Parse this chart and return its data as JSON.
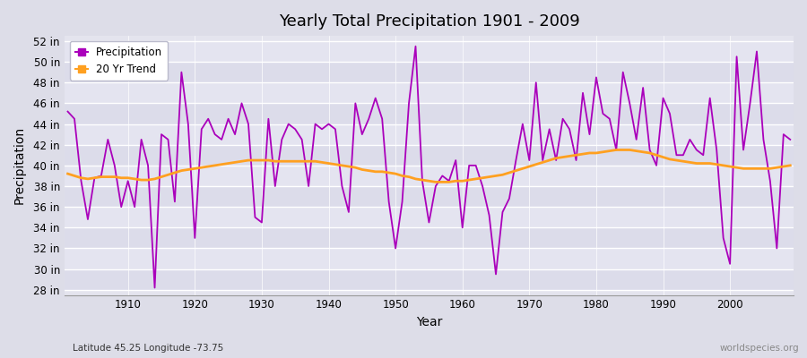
{
  "title": "Yearly Total Precipitation 1901 - 2009",
  "xlabel": "Year",
  "ylabel": "Precipitation",
  "subtitle_left": "Latitude 45.25 Longitude -73.75",
  "subtitle_right": "worldspecies.org",
  "precip_color": "#AA00BB",
  "trend_color": "#FFA020",
  "fig_bg_color": "#DDDDE8",
  "plot_bg_color": "#E4E4EE",
  "grid_color": "#FFFFFF",
  "ylim": [
    27.5,
    52.5
  ],
  "yticks": [
    28,
    30,
    32,
    34,
    36,
    38,
    40,
    42,
    44,
    46,
    48,
    50,
    52
  ],
  "xticks": [
    1910,
    1920,
    1930,
    1940,
    1950,
    1960,
    1970,
    1980,
    1990,
    2000
  ],
  "xlim": [
    1900.5,
    2009.5
  ],
  "years": [
    1901,
    1902,
    1903,
    1904,
    1905,
    1906,
    1907,
    1908,
    1909,
    1910,
    1911,
    1912,
    1913,
    1914,
    1915,
    1916,
    1917,
    1918,
    1919,
    1920,
    1921,
    1922,
    1923,
    1924,
    1925,
    1926,
    1927,
    1928,
    1929,
    1930,
    1931,
    1932,
    1933,
    1934,
    1935,
    1936,
    1937,
    1938,
    1939,
    1940,
    1941,
    1942,
    1943,
    1944,
    1945,
    1946,
    1947,
    1948,
    1949,
    1950,
    1951,
    1952,
    1953,
    1954,
    1955,
    1956,
    1957,
    1958,
    1959,
    1960,
    1961,
    1962,
    1963,
    1964,
    1965,
    1966,
    1967,
    1968,
    1969,
    1970,
    1971,
    1972,
    1973,
    1974,
    1975,
    1976,
    1977,
    1978,
    1979,
    1980,
    1981,
    1982,
    1983,
    1984,
    1985,
    1986,
    1987,
    1988,
    1989,
    1990,
    1991,
    1992,
    1993,
    1994,
    1995,
    1996,
    1997,
    1998,
    1999,
    2000,
    2001,
    2002,
    2003,
    2004,
    2005,
    2006,
    2007,
    2008,
    2009
  ],
  "precip": [
    45.2,
    44.5,
    38.5,
    34.8,
    38.8,
    39.0,
    42.5,
    40.0,
    36.0,
    38.5,
    36.0,
    42.5,
    40.0,
    28.2,
    43.0,
    42.5,
    36.5,
    49.0,
    44.0,
    33.0,
    43.5,
    44.5,
    43.0,
    42.5,
    44.5,
    43.0,
    46.0,
    44.0,
    35.0,
    34.5,
    44.5,
    38.0,
    42.5,
    44.0,
    43.5,
    42.5,
    38.0,
    44.0,
    43.5,
    44.0,
    43.5,
    38.0,
    35.5,
    46.0,
    43.0,
    44.5,
    46.5,
    44.5,
    36.5,
    32.0,
    36.5,
    46.0,
    51.5,
    38.5,
    34.5,
    38.0,
    39.0,
    38.5,
    40.5,
    34.0,
    40.0,
    40.0,
    38.0,
    35.2,
    29.5,
    35.5,
    36.8,
    40.5,
    44.0,
    40.5,
    48.0,
    40.5,
    43.5,
    40.5,
    44.5,
    43.5,
    40.5,
    47.0,
    43.0,
    48.5,
    45.0,
    44.5,
    41.5,
    49.0,
    46.0,
    42.5,
    47.5,
    41.5,
    40.0,
    46.5,
    45.0,
    41.0,
    41.0,
    42.5,
    41.5,
    41.0,
    46.5,
    41.5,
    33.0,
    30.5,
    50.5,
    41.5,
    46.0,
    51.0,
    42.5,
    38.5,
    32.0,
    43.0,
    42.5
  ],
  "trend": [
    39.2,
    39.0,
    38.8,
    38.7,
    38.8,
    38.9,
    38.9,
    38.9,
    38.8,
    38.8,
    38.7,
    38.6,
    38.6,
    38.7,
    38.9,
    39.1,
    39.3,
    39.5,
    39.6,
    39.7,
    39.8,
    39.9,
    40.0,
    40.1,
    40.2,
    40.3,
    40.4,
    40.5,
    40.5,
    40.5,
    40.5,
    40.4,
    40.4,
    40.4,
    40.4,
    40.4,
    40.4,
    40.4,
    40.3,
    40.2,
    40.1,
    40.0,
    39.9,
    39.8,
    39.6,
    39.5,
    39.4,
    39.4,
    39.3,
    39.2,
    39.0,
    38.9,
    38.7,
    38.6,
    38.5,
    38.4,
    38.4,
    38.4,
    38.5,
    38.5,
    38.6,
    38.7,
    38.8,
    38.9,
    39.0,
    39.1,
    39.3,
    39.5,
    39.7,
    39.9,
    40.1,
    40.3,
    40.5,
    40.7,
    40.8,
    40.9,
    41.0,
    41.1,
    41.2,
    41.2,
    41.3,
    41.4,
    41.5,
    41.5,
    41.5,
    41.4,
    41.3,
    41.2,
    41.0,
    40.8,
    40.6,
    40.5,
    40.4,
    40.3,
    40.2,
    40.2,
    40.2,
    40.1,
    40.0,
    39.9,
    39.8,
    39.7,
    39.7,
    39.7,
    39.7,
    39.7,
    39.8,
    39.9,
    40.0
  ]
}
